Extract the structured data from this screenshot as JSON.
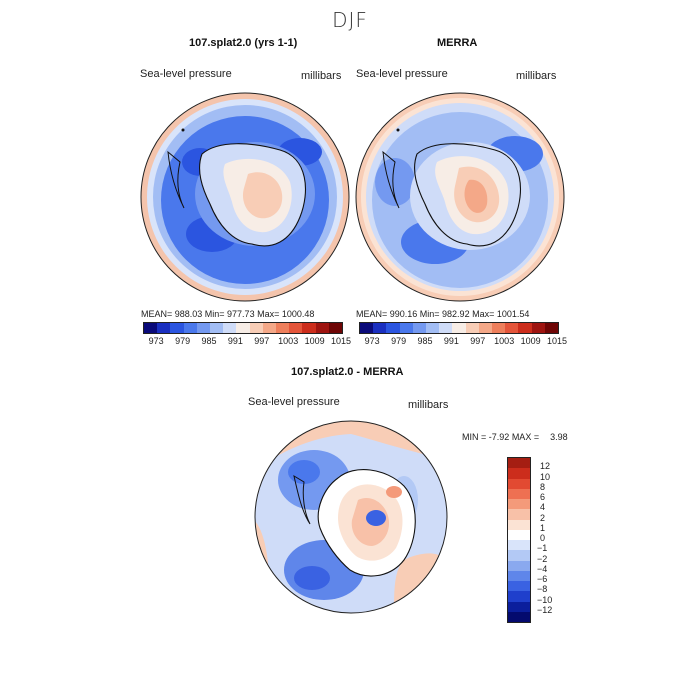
{
  "season": "DJF",
  "panels": [
    {
      "title": "107.splat2.0 (yrs 1-1)",
      "variable": "Sea-level pressure",
      "units": "millibars",
      "stats": {
        "mean": "988.03",
        "min": "977.73",
        "max": "1000.48"
      },
      "stats_text": "MEAN= 988.03   Min= 977.73   Max= 1000.48"
    },
    {
      "title": "MERRA",
      "variable": "Sea-level pressure",
      "units": "millibars",
      "stats": {
        "mean": "990.16",
        "min": "982.92",
        "max": "1001.54"
      },
      "stats_text": "MEAN= 990.16   Min= 982.92   Max= 1001.54"
    }
  ],
  "abs_colorbar": {
    "colors": [
      "#0a0a7a",
      "#1a2fc0",
      "#2b55e0",
      "#4a78ec",
      "#7499f0",
      "#a2bdf4",
      "#cfdcf8",
      "#f7ede6",
      "#f8cdb6",
      "#f4a888",
      "#ee7f5c",
      "#e4553a",
      "#cc2d1c",
      "#9e1410",
      "#6e0505"
    ],
    "ticks": [
      "973",
      "979",
      "985",
      "991",
      "997",
      "1003",
      "1009",
      "1015"
    ]
  },
  "diff_panel": {
    "title": "107.splat2.0 - MERRA",
    "variable": "Sea-level pressure",
    "units": "millibars",
    "min_label": "MIN =",
    "min": "-7.92",
    "max_label": "MAX =",
    "max": "3.98"
  },
  "diff_colorbar": {
    "colors_top_to_bottom": [
      "#a51e12",
      "#cc2d1c",
      "#e24a32",
      "#ee7052",
      "#f49a7a",
      "#f8c1a8",
      "#fbe3d4",
      "#ffffff",
      "#d9e4fa",
      "#b3c9f5",
      "#8aa9ef",
      "#5f86ea",
      "#3a62e2",
      "#1f3fcc",
      "#0b1e9c",
      "#040a6e"
    ],
    "ticks": [
      "12",
      "10",
      "8",
      "6",
      "4",
      "2",
      "1",
      "0",
      "−1",
      "−2",
      "−4",
      "−6",
      "−8",
      "−10",
      "−12"
    ]
  }
}
